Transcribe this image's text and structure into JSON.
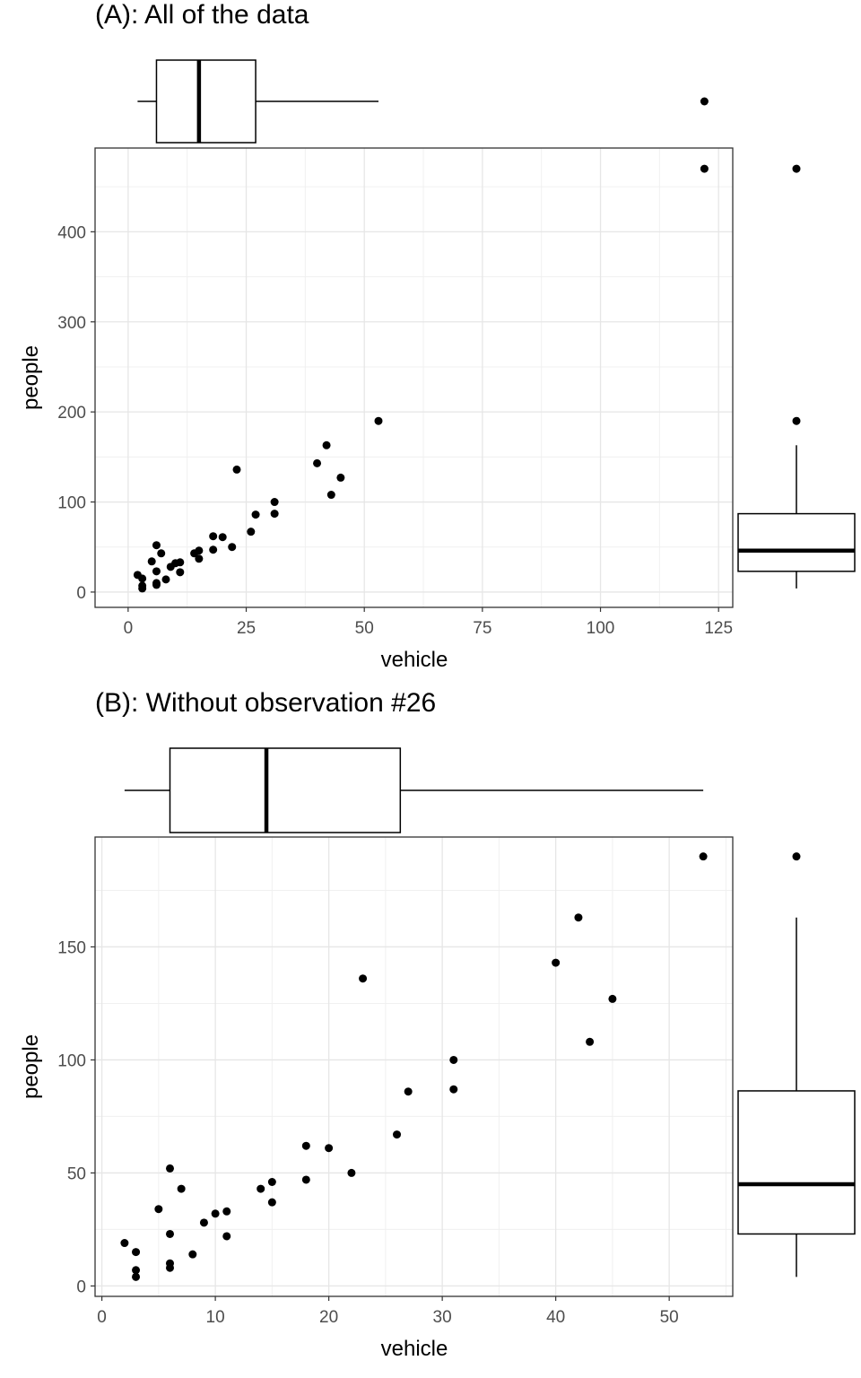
{
  "chart_data": [
    {
      "type": "scatter",
      "title": "(A): All of the data",
      "xlabel": "vehicle",
      "ylabel": "people",
      "xlim": [
        -7,
        128
      ],
      "ylim": [
        -17,
        493
      ],
      "xticks": [
        0,
        25,
        50,
        75,
        100,
        125
      ],
      "yticks": [
        0,
        100,
        200,
        300,
        400
      ],
      "grid": true,
      "marginal_boxplots": [
        "top",
        "right"
      ],
      "points": [
        {
          "x": 2,
          "y": 19
        },
        {
          "x": 3,
          "y": 15
        },
        {
          "x": 3,
          "y": 7
        },
        {
          "x": 3,
          "y": 4
        },
        {
          "x": 5,
          "y": 34
        },
        {
          "x": 6,
          "y": 52
        },
        {
          "x": 6,
          "y": 23
        },
        {
          "x": 6,
          "y": 10
        },
        {
          "x": 6,
          "y": 8
        },
        {
          "x": 7,
          "y": 43
        },
        {
          "x": 8,
          "y": 14
        },
        {
          "x": 9,
          "y": 28
        },
        {
          "x": 10,
          "y": 32
        },
        {
          "x": 11,
          "y": 33
        },
        {
          "x": 11,
          "y": 22
        },
        {
          "x": 14,
          "y": 43
        },
        {
          "x": 15,
          "y": 46
        },
        {
          "x": 15,
          "y": 37
        },
        {
          "x": 18,
          "y": 62
        },
        {
          "x": 18,
          "y": 47
        },
        {
          "x": 20,
          "y": 61
        },
        {
          "x": 22,
          "y": 50
        },
        {
          "x": 23,
          "y": 136
        },
        {
          "x": 26,
          "y": 67
        },
        {
          "x": 27,
          "y": 86
        },
        {
          "x": 31,
          "y": 100
        },
        {
          "x": 31,
          "y": 87
        },
        {
          "x": 40,
          "y": 143
        },
        {
          "x": 42,
          "y": 163
        },
        {
          "x": 43,
          "y": 108
        },
        {
          "x": 45,
          "y": 127
        },
        {
          "x": 53,
          "y": 190
        },
        {
          "x": 122,
          "y": 470
        }
      ],
      "boxplot_x": {
        "lower_whisker": 2,
        "q1": 6,
        "median": 15,
        "q3": 27,
        "upper_whisker": 53,
        "outliers": [
          122
        ]
      },
      "boxplot_y": {
        "lower_whisker": 4,
        "q1": 23,
        "median": 46,
        "q3": 87,
        "upper_whisker": 163,
        "outliers": [
          190,
          470
        ]
      }
    },
    {
      "type": "scatter",
      "title": "(B): Without observation #26",
      "xlabel": "vehicle",
      "ylabel": "people",
      "xlim": [
        -0.6,
        55.6
      ],
      "ylim": [
        -4.6,
        198.6
      ],
      "xticks": [
        0,
        10,
        20,
        30,
        40,
        50
      ],
      "yticks": [
        0,
        50,
        100,
        150
      ],
      "grid": true,
      "marginal_boxplots": [
        "top",
        "right"
      ],
      "points": [
        {
          "x": 2,
          "y": 19
        },
        {
          "x": 3,
          "y": 15
        },
        {
          "x": 3,
          "y": 7
        },
        {
          "x": 3,
          "y": 4
        },
        {
          "x": 5,
          "y": 34
        },
        {
          "x": 6,
          "y": 52
        },
        {
          "x": 6,
          "y": 23
        },
        {
          "x": 6,
          "y": 10
        },
        {
          "x": 6,
          "y": 8
        },
        {
          "x": 7,
          "y": 43
        },
        {
          "x": 8,
          "y": 14
        },
        {
          "x": 9,
          "y": 28
        },
        {
          "x": 10,
          "y": 32
        },
        {
          "x": 11,
          "y": 33
        },
        {
          "x": 11,
          "y": 22
        },
        {
          "x": 14,
          "y": 43
        },
        {
          "x": 15,
          "y": 46
        },
        {
          "x": 15,
          "y": 37
        },
        {
          "x": 18,
          "y": 62
        },
        {
          "x": 18,
          "y": 47
        },
        {
          "x": 20,
          "y": 61
        },
        {
          "x": 22,
          "y": 50
        },
        {
          "x": 23,
          "y": 136
        },
        {
          "x": 26,
          "y": 67
        },
        {
          "x": 27,
          "y": 86
        },
        {
          "x": 31,
          "y": 100
        },
        {
          "x": 31,
          "y": 87
        },
        {
          "x": 40,
          "y": 143
        },
        {
          "x": 42,
          "y": 163
        },
        {
          "x": 43,
          "y": 108
        },
        {
          "x": 45,
          "y": 127
        },
        {
          "x": 53,
          "y": 190
        }
      ],
      "boxplot_x": {
        "lower_whisker": 2,
        "q1": 6,
        "median": 14.5,
        "q3": 26.3,
        "upper_whisker": 53,
        "outliers": []
      },
      "boxplot_y": {
        "lower_whisker": 4,
        "q1": 23,
        "median": 45,
        "q3": 86.3,
        "upper_whisker": 163,
        "outliers": [
          190
        ]
      }
    }
  ]
}
